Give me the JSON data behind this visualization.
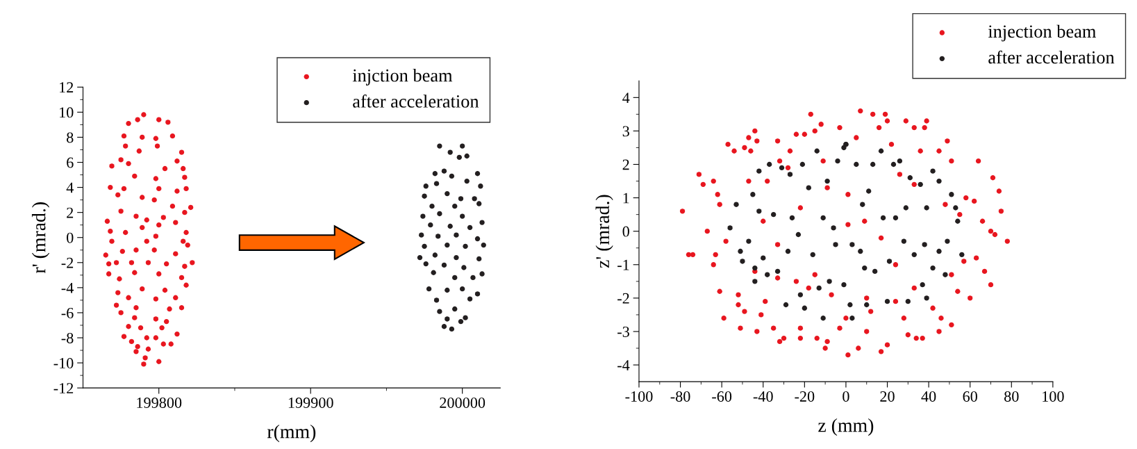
{
  "chart_data": [
    {
      "type": "scatter",
      "xlabel": "r(mm)",
      "ylabel": "r' (mrad.)",
      "xlim": [
        199750,
        200025
      ],
      "xticks": [
        199800,
        199900,
        200000
      ],
      "ylim": [
        -12,
        12
      ],
      "yticks": [
        -12,
        -10,
        -8,
        -6,
        -4,
        -2,
        0,
        2,
        4,
        6,
        8,
        10,
        12
      ],
      "legend": "top right",
      "marker": "circle",
      "grid": false,
      "series": [
        {
          "name": "injction beam",
          "color": "#e8161f",
          "x": [
            199790,
            199800,
            199806,
            199780,
            199786,
            199809,
            199777,
            199798,
            199789,
            199778,
            199799,
            199815,
            199787,
            199775,
            199780,
            199812,
            199816,
            199804,
            199769,
            199784,
            199817,
            199798,
            199768,
            199777,
            199800,
            199812,
            199818,
            199773,
            199789,
            199797,
            199809,
            199821,
            199775,
            199785,
            199803,
            199817,
            199766,
            199792,
            199800,
            199811,
            199768,
            199778,
            199789,
            199818,
            199798,
            199769,
            199792,
            199816,
            199819,
            199765,
            199776,
            199785,
            199797,
            199811,
            199767,
            199772,
            199782,
            199793,
            199805,
            199822,
            199817,
            199767,
            199784,
            199800,
            199815,
            199774,
            199789,
            199804,
            199818,
            199773,
            199780,
            199798,
            199811,
            199772,
            199785,
            199807,
            199815,
            199775,
            199784,
            199798,
            199805,
            199780,
            199788,
            199802,
            199777,
            199792,
            199798,
            199812,
            199782,
            199786,
            199803,
            199793,
            199808,
            199791,
            199800,
            199790,
            199785
          ],
          "values": [
            9.8,
            9.4,
            9.2,
            9.1,
            9.4,
            8.1,
            8.1,
            7.9,
            8.0,
            7.3,
            7.3,
            6.8,
            6.9,
            6.2,
            5.9,
            6.1,
            5.5,
            5.5,
            5.7,
            4.9,
            4.8,
            4.7,
            4.0,
            3.9,
            3.9,
            3.7,
            3.9,
            3.4,
            3.2,
            3.0,
            2.5,
            2.4,
            2.1,
            1.7,
            1.6,
            2.0,
            1.3,
            1.4,
            1.0,
            1.2,
            0.5,
            0.4,
            0.8,
            0.4,
            0.1,
            -0.3,
            -0.3,
            -0.3,
            -0.6,
            -1.4,
            -1.1,
            -1.0,
            -1.0,
            -1.3,
            -2.1,
            -2.0,
            -2.0,
            -2.0,
            -2.1,
            -2.0,
            -2.3,
            -2.9,
            -2.8,
            -2.9,
            -3.2,
            -3.3,
            -4.1,
            -4.2,
            -3.8,
            -4.4,
            -4.8,
            -4.9,
            -4.8,
            -5.4,
            -5.6,
            -5.7,
            -5.6,
            -6.0,
            -6.4,
            -6.5,
            -6.7,
            -7.1,
            -7.2,
            -7.2,
            -7.9,
            -8.0,
            -8.0,
            -7.7,
            -8.3,
            -8.7,
            -8.5,
            -8.9,
            -8.5,
            -9.6,
            -9.9,
            -10.1,
            -9.1
          ]
        },
        {
          "name": "after acceleration",
          "color": "#231f20",
          "x": [
            199985,
            200000,
            199992,
            200003,
            199998,
            199988,
            199982,
            200010,
            199993,
            199976,
            199983,
            200003,
            200012,
            199975,
            199990,
            199999,
            200008,
            199980,
            199995,
            200011,
            199974,
            199985,
            200000,
            200013,
            199979,
            199992,
            200005,
            199973,
            199984,
            199996,
            200010,
            200014,
            199975,
            199990,
            200002,
            199972,
            199982,
            199996,
            200011,
            199976,
            199988,
            200001,
            200013,
            199981,
            199995,
            200007,
            199978,
            199990,
            200000,
            200010,
            199983,
            200005,
            199985,
            199995,
            200002,
            199990,
            199988,
            199993,
            199999
          ],
          "values": [
            7.3,
            7.3,
            6.8,
            6.5,
            6.4,
            5.3,
            5.1,
            5.1,
            4.9,
            4.1,
            4.3,
            4.5,
            4.1,
            3.3,
            3.5,
            3.1,
            3.1,
            2.5,
            2.5,
            2.7,
            1.7,
            1.9,
            1.7,
            1.2,
            1.0,
            0.9,
            0.8,
            0.2,
            0.1,
            0.2,
            -0.1,
            -0.6,
            -0.7,
            -0.6,
            -0.7,
            -1.6,
            -1.4,
            -1.6,
            -1.7,
            -2.1,
            -2.2,
            -2.4,
            -2.9,
            -2.8,
            -3.2,
            -3.2,
            -4.1,
            -4.2,
            -4.1,
            -4.5,
            -5.0,
            -4.9,
            -5.9,
            -5.7,
            -6.4,
            -6.5,
            -7.1,
            -7.3,
            -6.7
          ]
        }
      ]
    },
    {
      "type": "scatter",
      "xlabel": "z (mm)",
      "ylabel": "z' (mrad.)",
      "xlim": [
        -100,
        100
      ],
      "xticks": [
        -100,
        -80,
        -60,
        -40,
        -20,
        0,
        20,
        40,
        60,
        80,
        100
      ],
      "ylim": [
        -4.5,
        4.5
      ],
      "yticks": [
        -4,
        -3,
        -2,
        -1,
        0,
        1,
        2,
        3,
        4
      ],
      "legend": "top right",
      "marker": "circle",
      "grid": false,
      "series": [
        {
          "name": "injection beam",
          "color": "#e8161f",
          "x": [
            -79,
            -76,
            -74,
            -71,
            -69,
            -67,
            -64,
            -64,
            -63,
            -62,
            -61,
            -61,
            -59,
            -58,
            -57,
            -54,
            -52,
            -52,
            -51,
            -49,
            -49,
            -47,
            -46,
            -44,
            -43,
            -43,
            -44,
            -41,
            -39,
            -38,
            -35,
            -33,
            -33,
            -32,
            -32,
            -30,
            -27,
            -28,
            -24,
            -22,
            -22,
            -20,
            -17,
            -18,
            -15,
            -14,
            -12,
            -10,
            -9,
            -7,
            -3,
            -3,
            0,
            1,
            1,
            5,
            6,
            7,
            10,
            12,
            13,
            16,
            17,
            19,
            20,
            20,
            22,
            24,
            28,
            29,
            30,
            33,
            33,
            34,
            36,
            37,
            38,
            39,
            42,
            45,
            45,
            46,
            48,
            49,
            51,
            51,
            51,
            54,
            55,
            57,
            58,
            60,
            62,
            63,
            64,
            66,
            67,
            70,
            70,
            71,
            72,
            74,
            75,
            78,
            -11,
            -9,
            -22,
            1,
            9,
            17,
            -15,
            -33,
            -24,
            10,
            24,
            33,
            26,
            -40,
            -47
          ],
          "values": [
            0.6,
            -0.7,
            -0.7,
            1.7,
            1.4,
            0.0,
            1.5,
            -1.0,
            -0.7,
            1.1,
            0.8,
            -1.8,
            -2.6,
            -0.3,
            2.6,
            2.4,
            -1.9,
            -2.2,
            -2.9,
            -2.4,
            2.5,
            2.8,
            2.4,
            3.0,
            2.7,
            -3.0,
            -1.2,
            -2.5,
            -2.1,
            1.5,
            -2.9,
            2.7,
            -0.4,
            -3.3,
            2.1,
            -3.2,
            2.4,
            1.9,
            2.9,
            -2.9,
            -3.2,
            2.9,
            3.5,
            -1.7,
            3.0,
            -3.2,
            3.2,
            -3.5,
            -3.3,
            -1.9,
            3.1,
            -2.9,
            -2.6,
            -3.7,
            1.1,
            2.8,
            -3.5,
            3.6,
            -3.0,
            -2.4,
            3.5,
            3.1,
            -3.6,
            3.5,
            -3.4,
            3.3,
            2.6,
            -2.1,
            -2.6,
            3.3,
            -3.1,
            3.1,
            -1.7,
            -3.2,
            2.4,
            -3.2,
            3.1,
            3.3,
            -2.3,
            2.4,
            -3.0,
            -2.6,
            0.8,
            2.7,
            2.1,
            -2.8,
            -1.3,
            -1.8,
            0.5,
            -0.9,
            1.0,
            -2.0,
            0.9,
            -0.8,
            2.1,
            0.3,
            -1.2,
            0.0,
            -1.6,
            1.6,
            -0.1,
            1.2,
            0.6,
            -0.3,
            2.1,
            1.3,
            0.7,
            0.2,
            0.3,
            -0.2,
            -1.3,
            -1.4,
            -1.5,
            -2.0,
            -1.0,
            1.4,
            1.7,
            0.3,
            1.5
          ]
        },
        {
          "name": "after acceleration",
          "color": "#231f20",
          "x": [
            -56,
            -53,
            -51,
            -50,
            -47,
            -44,
            -44,
            -45,
            -42,
            -42,
            -40,
            -38,
            -37,
            -35,
            -33,
            -31,
            -29,
            -28,
            -27,
            -26,
            -23,
            -22,
            -21,
            -20,
            -18,
            -16,
            -14,
            -13,
            -11,
            -11,
            -9,
            -8,
            -6,
            -5,
            -4,
            -1,
            -1,
            0,
            0,
            2,
            3,
            3,
            5,
            7,
            8,
            9,
            10,
            11,
            13,
            14,
            17,
            18,
            20,
            21,
            23,
            24,
            26,
            28,
            29,
            30,
            31,
            33,
            36,
            37,
            38,
            39,
            42,
            42,
            45,
            45,
            48,
            49,
            51,
            53,
            54,
            56,
            39
          ],
          "values": [
            0.1,
            0.8,
            -0.6,
            -0.9,
            -0.3,
            -1.1,
            -1.5,
            1.1,
            1.8,
            0.6,
            -0.8,
            -1.3,
            2.0,
            0.5,
            -1.2,
            1.9,
            -2.2,
            -0.6,
            1.7,
            0.4,
            -0.1,
            -1.9,
            2.0,
            -2.3,
            1.3,
            -0.7,
            2.4,
            -1.7,
            0.4,
            -2.6,
            1.5,
            -1.5,
            0.1,
            -0.4,
            2.1,
            -1.6,
            2.5,
            2.6,
            2.6,
            -2.2,
            -2.6,
            -0.4,
            2.0,
            -0.6,
            0.8,
            -1.1,
            -2.2,
            1.2,
            2.0,
            -1.2,
            2.4,
            0.4,
            -2.1,
            -0.9,
            2.0,
            0.4,
            2.1,
            -0.3,
            0.7,
            -2.1,
            1.6,
            -0.7,
            1.4,
            -1.6,
            -0.4,
            0.7,
            1.8,
            -1.1,
            1.5,
            -0.6,
            -1.3,
            -0.3,
            1.1,
            0.7,
            0.3,
            -0.7,
            -2.0
          ]
        }
      ]
    }
  ]
}
